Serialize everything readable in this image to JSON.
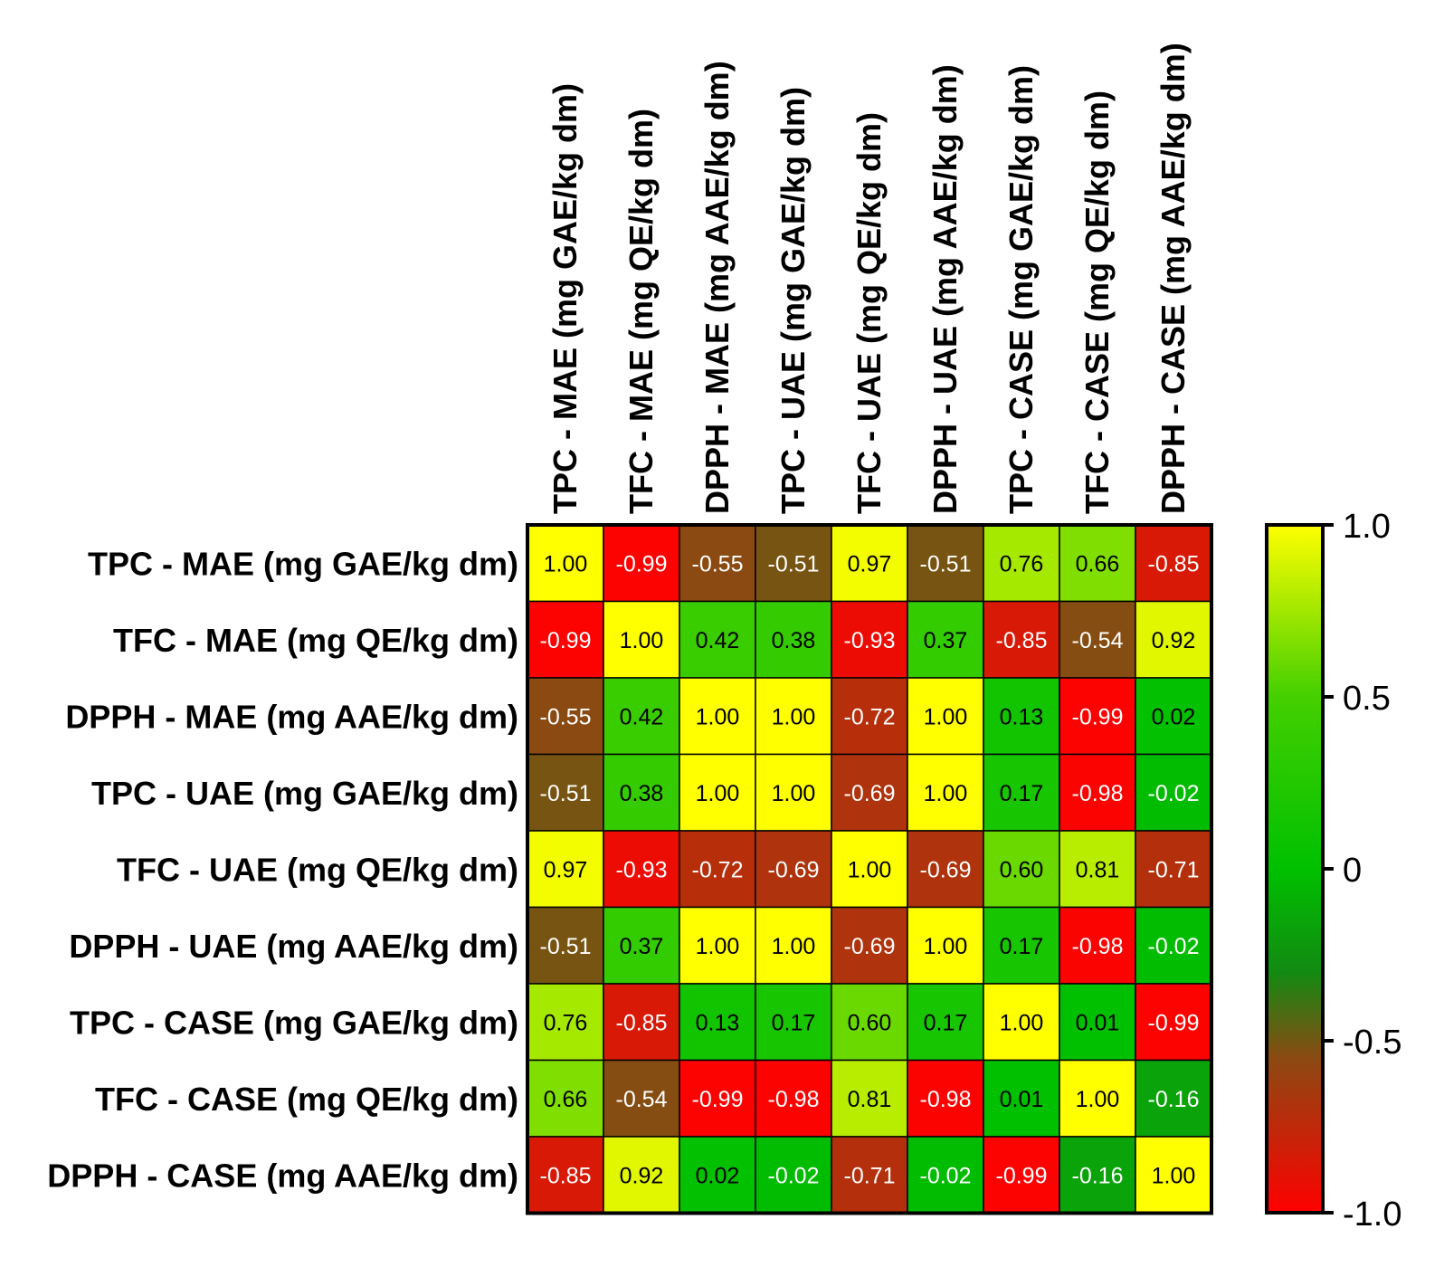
{
  "chart_data": {
    "type": "heatmap",
    "title": "",
    "row_labels": [
      "TPC - MAE (mg GAE/kg dm)",
      "TFC - MAE (mg QE/kg dm)",
      "DPPH - MAE (mg AAE/kg dm)",
      "TPC - UAE (mg GAE/kg dm)",
      "TFC - UAE (mg QE/kg dm)",
      "DPPH - UAE (mg AAE/kg dm)",
      "TPC - CASE (mg GAE/kg dm)",
      "TFC - CASE (mg QE/kg dm)",
      "DPPH - CASE (mg AAE/kg dm)"
    ],
    "column_labels": [
      "TPC - MAE (mg GAE/kg dm)",
      "TFC - MAE (mg QE/kg dm)",
      "DPPH - MAE (mg AAE/kg dm)",
      "TPC - UAE (mg GAE/kg dm)",
      "TFC - UAE (mg QE/kg dm)",
      "DPPH - UAE (mg AAE/kg dm)",
      "TPC - CASE (mg GAE/kg dm)",
      "TFC - CASE (mg QE/kg dm)",
      "DPPH - CASE (mg AAE/kg dm)"
    ],
    "values": [
      [
        1.0,
        -0.99,
        -0.55,
        -0.51,
        0.97,
        -0.51,
        0.76,
        0.66,
        -0.85
      ],
      [
        -0.99,
        1.0,
        0.42,
        0.38,
        -0.93,
        0.37,
        -0.85,
        -0.54,
        0.92
      ],
      [
        -0.55,
        0.42,
        1.0,
        1.0,
        -0.72,
        1.0,
        0.13,
        -0.99,
        0.02
      ],
      [
        -0.51,
        0.38,
        1.0,
        1.0,
        -0.69,
        1.0,
        0.17,
        -0.98,
        -0.02
      ],
      [
        0.97,
        -0.93,
        -0.72,
        -0.69,
        1.0,
        -0.69,
        0.6,
        0.81,
        -0.71
      ],
      [
        -0.51,
        0.37,
        1.0,
        1.0,
        -0.69,
        1.0,
        0.17,
        -0.98,
        -0.02
      ],
      [
        0.76,
        -0.85,
        0.13,
        0.17,
        0.6,
        0.17,
        1.0,
        0.01,
        -0.99
      ],
      [
        0.66,
        -0.54,
        -0.99,
        -0.98,
        0.81,
        -0.98,
        0.01,
        1.0,
        -0.16
      ],
      [
        -0.85,
        0.92,
        0.02,
        -0.02,
        -0.71,
        -0.02,
        -0.99,
        -0.16,
        1.0
      ]
    ],
    "value_labels": [
      [
        "1.00",
        "-0.99",
        "-0.55",
        "-0.51",
        "0.97",
        "-0.51",
        "0.76",
        "0.66",
        "-0.85"
      ],
      [
        "-0.99",
        "1.00",
        "0.42",
        "0.38",
        "-0.93",
        "0.37",
        "-0.85",
        "-0.54",
        "0.92"
      ],
      [
        "-0.55",
        "0.42",
        "1.00",
        "1.00",
        "-0.72",
        "1.00",
        "0.13",
        "-0.99",
        "0.02"
      ],
      [
        "-0.51",
        "0.38",
        "1.00",
        "1.00",
        "-0.69",
        "1.00",
        "0.17",
        "-0.98",
        "-0.02"
      ],
      [
        "0.97",
        "-0.93",
        "-0.72",
        "-0.69",
        "1.00",
        "-0.69",
        "0.60",
        "0.81",
        "-0.71"
      ],
      [
        "-0.51",
        "0.37",
        "1.00",
        "1.00",
        "-0.69",
        "1.00",
        "0.17",
        "-0.98",
        "-0.02"
      ],
      [
        "0.76",
        "-0.85",
        "0.13",
        "0.17",
        "0.60",
        "0.17",
        "1.00",
        "0.01",
        "-0.99"
      ],
      [
        "0.66",
        "-0.54",
        "-0.99",
        "-0.98",
        "0.81",
        "-0.98",
        "0.01",
        "1.00",
        "-0.16"
      ],
      [
        "-0.85",
        "0.92",
        "0.02",
        "-0.02",
        "-0.71",
        "-0.02",
        "-0.99",
        "-0.16",
        "1.00"
      ]
    ],
    "colorbar": {
      "range": [
        -1.0,
        1.0
      ],
      "ticks": [
        1.0,
        0.5,
        0,
        -0.5,
        -1.0
      ],
      "tick_labels": [
        "1.0",
        "0.5",
        "0",
        "-0.5",
        "-1.0"
      ],
      "stops": [
        {
          "value": 1.0,
          "color": "#ffff00"
        },
        {
          "value": 0.5,
          "color": "#44d000"
        },
        {
          "value": 0.0,
          "color": "#00c000"
        },
        {
          "value": -0.3,
          "color": "#128a12"
        },
        {
          "value": -0.55,
          "color": "#8b4a12"
        },
        {
          "value": -1.0,
          "color": "#ff0000"
        }
      ]
    },
    "legend_position": "right",
    "grid": false
  }
}
